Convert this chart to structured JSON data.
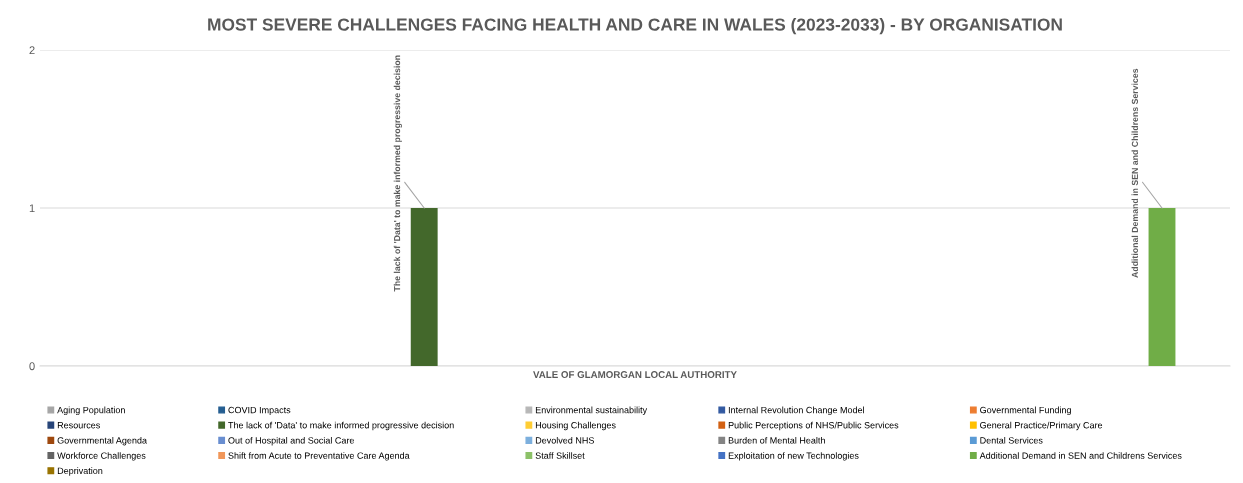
{
  "chart_data": {
    "type": "bar",
    "title": "MOST SEVERE CHALLENGES FACING HEALTH AND CARE IN WALES (2023-2033) - BY ORGANISATION",
    "categories": [
      "VALE OF GLAMORGAN LOCAL AUTHORITY"
    ],
    "ylim": [
      0,
      2
    ],
    "yticks": [
      0,
      1,
      2
    ],
    "grid": "y",
    "legend": "bottom",
    "series": [
      {
        "name": "Aging Population",
        "color": "#a5a5a5",
        "values": [
          0
        ]
      },
      {
        "name": "Resources",
        "color": "#264478",
        "values": [
          0
        ]
      },
      {
        "name": "Governmental Agenda",
        "color": "#9e480e",
        "values": [
          0
        ]
      },
      {
        "name": "Workforce Challenges",
        "color": "#636363",
        "values": [
          0
        ]
      },
      {
        "name": "Deprivation",
        "color": "#997300",
        "values": [
          0
        ]
      },
      {
        "name": "COVID Impacts",
        "color": "#255e91",
        "values": [
          0
        ]
      },
      {
        "name": "The lack of 'Data' to make informed progressive decision",
        "color": "#43682b",
        "values": [
          1
        ],
        "value_labels": [
          "The lack of 'Data' to make informed progressive decision"
        ]
      },
      {
        "name": "Out of Hospital and Social Care",
        "color": "#698ed0",
        "values": [
          0
        ]
      },
      {
        "name": "Shift from Acute to Preventative Care Agenda",
        "color": "#f1975a",
        "values": [
          0
        ]
      },
      {
        "name": "Environmental sustainability",
        "color": "#b7b7b7",
        "values": [
          0
        ]
      },
      {
        "name": "Housing Challenges",
        "color": "#ffcd33",
        "values": [
          0
        ]
      },
      {
        "name": "Devolved NHS",
        "color": "#7cafdd",
        "values": [
          0
        ]
      },
      {
        "name": "Staff Skillset",
        "color": "#8cc168",
        "values": [
          0
        ]
      },
      {
        "name": "Internal Revolution Change Model",
        "color": "#335aa1",
        "values": [
          0
        ]
      },
      {
        "name": "Public Perceptions of NHS/Public Services",
        "color": "#d26012",
        "values": [
          0
        ]
      },
      {
        "name": "Burden of Mental Health",
        "color": "#848484",
        "values": [
          0
        ]
      },
      {
        "name": "Exploitation of new Technologies",
        "color": "#4472c4",
        "values": [
          0
        ]
      },
      {
        "name": "Governmental Funding",
        "color": "#ed7d31",
        "values": [
          0
        ]
      },
      {
        "name": "General Practice/Primary Care",
        "color": "#ffc000",
        "values": [
          0
        ]
      },
      {
        "name": "Dental Services",
        "color": "#5b9bd5",
        "values": [
          0
        ]
      },
      {
        "name": "Additional Demand in SEN and Childrens Services",
        "color": "#70ad47",
        "values": [
          1
        ],
        "value_labels": [
          "Additional Demand in SEN and Childrens Services"
        ]
      }
    ]
  }
}
